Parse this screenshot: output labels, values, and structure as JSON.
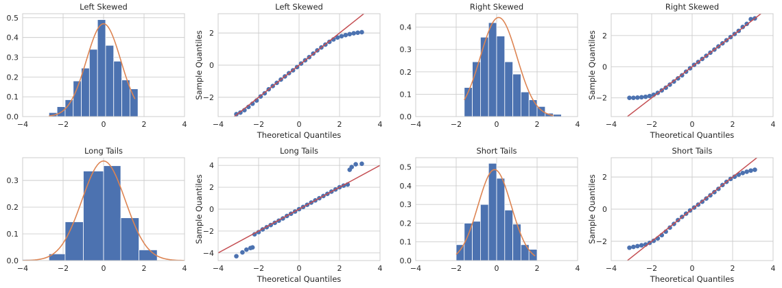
{
  "figure": {
    "colors": {
      "bar": "#4c72b0",
      "density": "#dd8452",
      "points": "#4c72b0",
      "reference_line": "#c44e52",
      "grid": "#cccccc"
    }
  },
  "chart_data": [
    {
      "type": "bar",
      "title": "Left Skewed",
      "xlabel": "",
      "ylabel": "",
      "xlim": [
        -4,
        4
      ],
      "ylim": [
        0,
        0.52
      ],
      "grid": true,
      "xticks": [
        "−4",
        "−2",
        "0",
        "2",
        "4"
      ],
      "yticks": [
        "0.0",
        "0.1",
        "0.2",
        "0.3",
        "0.4",
        "0.5"
      ],
      "bins": [
        {
          "x0": -2.7,
          "x1": -2.3,
          "value": 0.02
        },
        {
          "x0": -2.3,
          "x1": -1.9,
          "value": 0.05
        },
        {
          "x0": -1.9,
          "x1": -1.5,
          "value": 0.085
        },
        {
          "x0": -1.5,
          "x1": -1.1,
          "value": 0.18
        },
        {
          "x0": -1.1,
          "x1": -0.7,
          "value": 0.245
        },
        {
          "x0": -0.7,
          "x1": -0.3,
          "value": 0.34
        },
        {
          "x0": -0.3,
          "x1": 0.1,
          "value": 0.49
        },
        {
          "x0": 0.1,
          "x1": 0.5,
          "value": 0.36
        },
        {
          "x0": 0.5,
          "x1": 0.9,
          "value": 0.28
        },
        {
          "x0": 0.9,
          "x1": 1.3,
          "value": 0.185
        },
        {
          "x0": 1.3,
          "x1": 1.7,
          "value": 0.14
        }
      ],
      "density_curve": {
        "kind": "normal",
        "mean": 0.0,
        "sd": 0.85,
        "x_range": [
          -2.7,
          1.55
        ]
      }
    },
    {
      "type": "scatter",
      "title": "Left Skewed",
      "xlabel": "Theoretical Quantiles",
      "ylabel": "Sample Quantiles",
      "xlim": [
        -4,
        4
      ],
      "ylim": [
        -3.2,
        3.2
      ],
      "grid": true,
      "xticks": [
        "−4",
        "−2",
        "0",
        "2",
        "4"
      ],
      "yticks": [
        "−2",
        "0",
        "2"
      ],
      "points": [
        [
          -3.1,
          -3.05
        ],
        [
          -2.9,
          -2.95
        ],
        [
          -2.7,
          -2.8
        ],
        [
          -2.5,
          -2.6
        ],
        [
          -2.3,
          -2.4
        ],
        [
          -2.1,
          -2.2
        ],
        [
          -1.9,
          -1.95
        ],
        [
          -1.7,
          -1.75
        ],
        [
          -1.5,
          -1.5
        ],
        [
          -1.3,
          -1.3
        ],
        [
          -1.1,
          -1.1
        ],
        [
          -0.9,
          -0.9
        ],
        [
          -0.7,
          -0.7
        ],
        [
          -0.5,
          -0.5
        ],
        [
          -0.3,
          -0.32
        ],
        [
          -0.1,
          -0.12
        ],
        [
          0.1,
          0.1
        ],
        [
          0.3,
          0.3
        ],
        [
          0.5,
          0.5
        ],
        [
          0.7,
          0.72
        ],
        [
          0.9,
          0.92
        ],
        [
          1.1,
          1.1
        ],
        [
          1.3,
          1.28
        ],
        [
          1.5,
          1.45
        ],
        [
          1.7,
          1.6
        ],
        [
          1.9,
          1.72
        ],
        [
          2.1,
          1.8
        ],
        [
          2.3,
          1.87
        ],
        [
          2.5,
          1.93
        ],
        [
          2.7,
          1.98
        ],
        [
          2.9,
          2.02
        ],
        [
          3.1,
          2.05
        ]
      ],
      "reference_line": {
        "slope": 1.0,
        "intercept": 0.0
      }
    },
    {
      "type": "bar",
      "title": "Right Skewed",
      "xlabel": "",
      "ylabel": "",
      "xlim": [
        -4,
        4
      ],
      "ylim": [
        0,
        0.46
      ],
      "grid": true,
      "xticks": [
        "−4",
        "−2",
        "0",
        "2",
        "4"
      ],
      "yticks": [
        "0.0",
        "0.1",
        "0.2",
        "0.3",
        "0.4"
      ],
      "bins": [
        {
          "x0": -1.6,
          "x1": -1.2,
          "value": 0.13
        },
        {
          "x0": -1.2,
          "x1": -0.8,
          "value": 0.245
        },
        {
          "x0": -0.8,
          "x1": -0.4,
          "value": 0.355
        },
        {
          "x0": -0.4,
          "x1": 0.0,
          "value": 0.42
        },
        {
          "x0": 0.0,
          "x1": 0.4,
          "value": 0.36
        },
        {
          "x0": 0.4,
          "x1": 0.8,
          "value": 0.245
        },
        {
          "x0": 0.8,
          "x1": 1.2,
          "value": 0.19
        },
        {
          "x0": 1.2,
          "x1": 1.6,
          "value": 0.11
        },
        {
          "x0": 1.6,
          "x1": 2.0,
          "value": 0.075
        },
        {
          "x0": 2.0,
          "x1": 2.4,
          "value": 0.045
        },
        {
          "x0": 2.4,
          "x1": 2.8,
          "value": 0.015
        },
        {
          "x0": 2.8,
          "x1": 3.2,
          "value": 0.01
        }
      ],
      "density_curve": {
        "kind": "normal",
        "mean": 0.1,
        "sd": 0.9,
        "x_range": [
          -1.6,
          2.8
        ]
      }
    },
    {
      "type": "scatter",
      "title": "Right Skewed",
      "xlabel": "Theoretical Quantiles",
      "ylabel": "Sample Quantiles",
      "xlim": [
        -4,
        4
      ],
      "ylim": [
        -3.2,
        3.4
      ],
      "grid": true,
      "xticks": [
        "−4",
        "−2",
        "0",
        "2",
        "4"
      ],
      "yticks": [
        "−2",
        "0",
        "2"
      ],
      "points": [
        [
          -3.1,
          -2.0
        ],
        [
          -2.9,
          -2.0
        ],
        [
          -2.7,
          -1.98
        ],
        [
          -2.5,
          -1.96
        ],
        [
          -2.3,
          -1.93
        ],
        [
          -2.1,
          -1.88
        ],
        [
          -1.9,
          -1.8
        ],
        [
          -1.7,
          -1.68
        ],
        [
          -1.5,
          -1.52
        ],
        [
          -1.3,
          -1.35
        ],
        [
          -1.1,
          -1.15
        ],
        [
          -0.9,
          -0.95
        ],
        [
          -0.7,
          -0.75
        ],
        [
          -0.5,
          -0.55
        ],
        [
          -0.3,
          -0.32
        ],
        [
          -0.1,
          -0.1
        ],
        [
          0.1,
          0.12
        ],
        [
          0.3,
          0.3
        ],
        [
          0.5,
          0.5
        ],
        [
          0.7,
          0.7
        ],
        [
          0.9,
          0.9
        ],
        [
          1.1,
          1.1
        ],
        [
          1.3,
          1.3
        ],
        [
          1.5,
          1.5
        ],
        [
          1.7,
          1.7
        ],
        [
          1.9,
          1.9
        ],
        [
          2.1,
          2.1
        ],
        [
          2.3,
          2.3
        ],
        [
          2.5,
          2.55
        ],
        [
          2.7,
          2.75
        ],
        [
          2.9,
          3.05
        ],
        [
          3.1,
          3.1
        ]
      ],
      "reference_line": {
        "slope": 1.0,
        "intercept": 0.0
      }
    },
    {
      "type": "bar",
      "title": "Long Tails",
      "xlabel": "",
      "ylabel": "",
      "xlim": [
        -4,
        4
      ],
      "ylim": [
        0,
        0.385
      ],
      "grid": true,
      "xticks": [
        "−4",
        "−2",
        "0",
        "2",
        "4"
      ],
      "yticks": [
        "0.0",
        "0.1",
        "0.2",
        "0.3"
      ],
      "bins": [
        {
          "x0": -4.0,
          "x1": -3.3,
          "value": 0.004
        },
        {
          "x0": -2.7,
          "x1": -1.9,
          "value": 0.025
        },
        {
          "x0": -1.9,
          "x1": -1.0,
          "value": 0.145
        },
        {
          "x0": -1.0,
          "x1": 0.0,
          "value": 0.335
        },
        {
          "x0": 0.0,
          "x1": 0.85,
          "value": 0.355
        },
        {
          "x0": 0.85,
          "x1": 1.75,
          "value": 0.16
        },
        {
          "x0": 1.75,
          "x1": 2.65,
          "value": 0.04
        }
      ],
      "density_curve": {
        "kind": "normal",
        "mean": 0.0,
        "sd": 1.07,
        "x_range": [
          -4.0,
          4.0
        ]
      }
    },
    {
      "type": "scatter",
      "title": "Long Tails",
      "xlabel": "Theoretical Quantiles",
      "ylabel": "Sample Quantiles",
      "xlim": [
        -4,
        4
      ],
      "ylim": [
        -4.7,
        4.7
      ],
      "grid": true,
      "xticks": [
        "−4",
        "−2",
        "0",
        "2",
        "4"
      ],
      "yticks": [
        "−4",
        "−2",
        "0",
        "2",
        "4"
      ],
      "points": [
        [
          -3.1,
          -4.3
        ],
        [
          -2.8,
          -3.95
        ],
        [
          -2.6,
          -3.7
        ],
        [
          -2.4,
          -3.55
        ],
        [
          -2.3,
          -3.5
        ],
        [
          -2.2,
          -2.3
        ],
        [
          -2.0,
          -2.1
        ],
        [
          -1.8,
          -1.85
        ],
        [
          -1.6,
          -1.65
        ],
        [
          -1.4,
          -1.45
        ],
        [
          -1.2,
          -1.25
        ],
        [
          -1.0,
          -1.05
        ],
        [
          -0.8,
          -0.85
        ],
        [
          -0.6,
          -0.62
        ],
        [
          -0.4,
          -0.42
        ],
        [
          -0.2,
          -0.22
        ],
        [
          0.0,
          0.0
        ],
        [
          0.2,
          0.2
        ],
        [
          0.4,
          0.4
        ],
        [
          0.6,
          0.6
        ],
        [
          0.8,
          0.8
        ],
        [
          1.0,
          1.0
        ],
        [
          1.2,
          1.2
        ],
        [
          1.4,
          1.4
        ],
        [
          1.6,
          1.6
        ],
        [
          1.8,
          1.8
        ],
        [
          2.0,
          2.0
        ],
        [
          2.2,
          2.15
        ],
        [
          2.4,
          2.25
        ],
        [
          2.5,
          3.6
        ],
        [
          2.6,
          3.85
        ],
        [
          2.8,
          4.1
        ],
        [
          3.1,
          4.15
        ]
      ],
      "reference_line": {
        "slope": 1.0,
        "intercept": 0.0
      }
    },
    {
      "type": "bar",
      "title": "Short Tails",
      "xlabel": "",
      "ylabel": "",
      "xlim": [
        -4,
        4
      ],
      "ylim": [
        0,
        0.55
      ],
      "grid": true,
      "xticks": [
        "−4",
        "−2",
        "0",
        "2",
        "4"
      ],
      "yticks": [
        "0.0",
        "0.1",
        "0.2",
        "0.3",
        "0.4",
        "0.5"
      ],
      "bins": [
        {
          "x0": -2.0,
          "x1": -1.6,
          "value": 0.085
        },
        {
          "x0": -1.6,
          "x1": -1.2,
          "value": 0.2
        },
        {
          "x0": -1.2,
          "x1": -0.8,
          "value": 0.21
        },
        {
          "x0": -0.8,
          "x1": -0.4,
          "value": 0.3
        },
        {
          "x0": -0.4,
          "x1": 0.0,
          "value": 0.52
        },
        {
          "x0": 0.0,
          "x1": 0.4,
          "value": 0.44
        },
        {
          "x0": 0.4,
          "x1": 0.8,
          "value": 0.27
        },
        {
          "x0": 0.8,
          "x1": 1.2,
          "value": 0.195
        },
        {
          "x0": 1.2,
          "x1": 1.6,
          "value": 0.085
        },
        {
          "x0": 1.6,
          "x1": 2.0,
          "value": 0.06
        }
      ],
      "density_curve": {
        "kind": "normal",
        "mean": -0.1,
        "sd": 0.82,
        "x_range": [
          -2.0,
          1.9
        ]
      }
    },
    {
      "type": "scatter",
      "title": "Short Tails",
      "xlabel": "Theoretical Quantiles",
      "ylabel": "Sample Quantiles",
      "xlim": [
        -4,
        4
      ],
      "ylim": [
        -3.2,
        3.2
      ],
      "grid": true,
      "xticks": [
        "−4",
        "−2",
        "0",
        "2",
        "4"
      ],
      "yticks": [
        "−2",
        "0",
        "2"
      ],
      "points": [
        [
          -3.1,
          -2.4
        ],
        [
          -2.9,
          -2.35
        ],
        [
          -2.7,
          -2.3
        ],
        [
          -2.5,
          -2.25
        ],
        [
          -2.3,
          -2.2
        ],
        [
          -2.1,
          -2.1
        ],
        [
          -1.9,
          -1.97
        ],
        [
          -1.7,
          -1.82
        ],
        [
          -1.5,
          -1.62
        ],
        [
          -1.3,
          -1.4
        ],
        [
          -1.1,
          -1.15
        ],
        [
          -0.9,
          -0.92
        ],
        [
          -0.7,
          -0.68
        ],
        [
          -0.5,
          -0.48
        ],
        [
          -0.3,
          -0.28
        ],
        [
          -0.1,
          -0.08
        ],
        [
          0.1,
          0.1
        ],
        [
          0.3,
          0.28
        ],
        [
          0.5,
          0.46
        ],
        [
          0.7,
          0.66
        ],
        [
          0.9,
          0.86
        ],
        [
          1.1,
          1.06
        ],
        [
          1.3,
          1.26
        ],
        [
          1.5,
          1.5
        ],
        [
          1.7,
          1.7
        ],
        [
          1.9,
          1.88
        ],
        [
          2.1,
          2.02
        ],
        [
          2.3,
          2.15
        ],
        [
          2.5,
          2.25
        ],
        [
          2.7,
          2.33
        ],
        [
          2.9,
          2.4
        ],
        [
          3.1,
          2.45
        ]
      ],
      "reference_line": {
        "slope": 1.0,
        "intercept": 0.0
      }
    }
  ]
}
